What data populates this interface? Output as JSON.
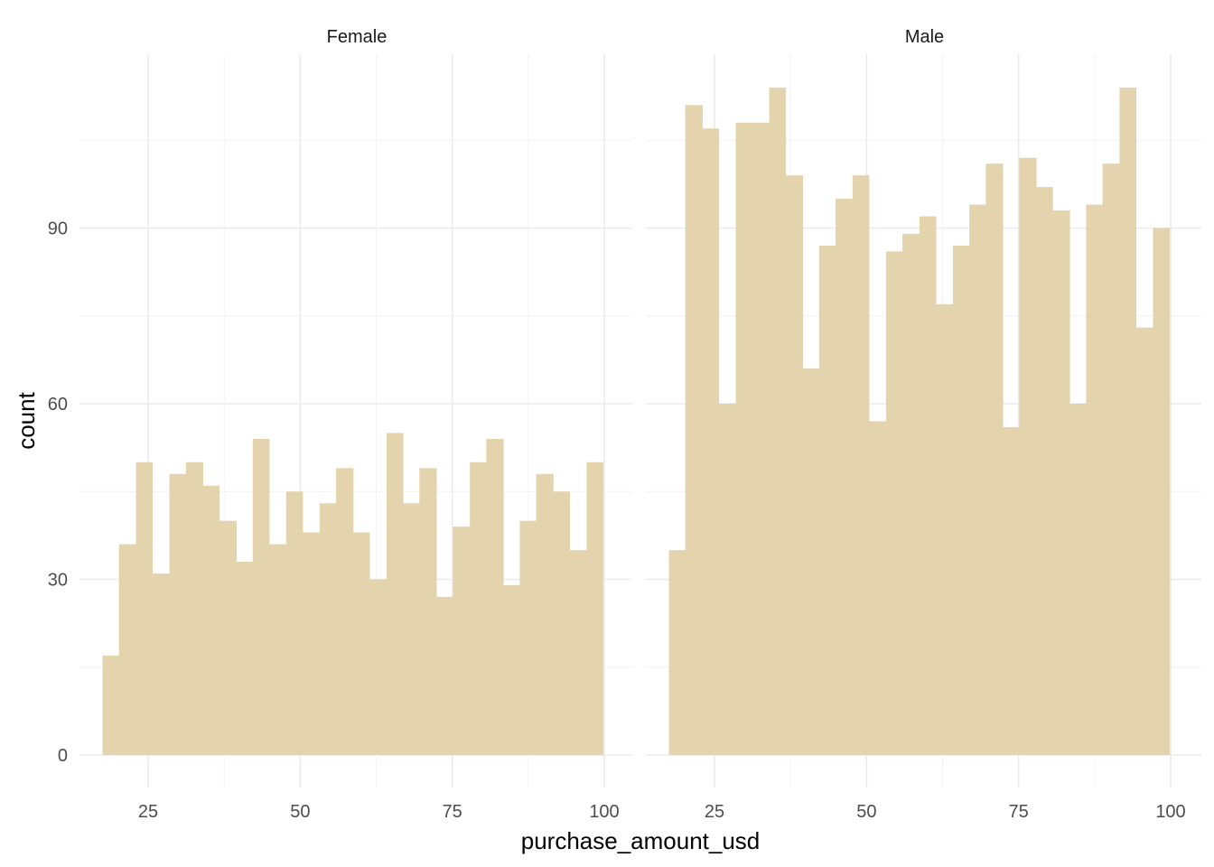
{
  "chart_data": {
    "type": "bar",
    "subtype": "histogram-facets",
    "xlabel": "purchase_amount_usd",
    "ylabel": "count",
    "x_ticks": [
      25,
      50,
      75,
      100
    ],
    "y_ticks": [
      0,
      30,
      60,
      90
    ],
    "xlim": [
      15.5,
      103
    ],
    "ylim": [
      0,
      120
    ],
    "bin_edges": [
      17.5,
      20.2,
      23.0,
      25.7,
      28.5,
      31.2,
      34.0,
      36.7,
      39.5,
      42.2,
      44.9,
      47.7,
      50.4,
      53.2,
      55.9,
      58.7,
      61.4,
      64.2,
      66.9,
      69.6,
      72.4,
      75.1,
      77.9,
      80.6,
      83.4,
      86.1,
      88.8,
      91.6,
      94.3,
      97.1,
      99.8
    ],
    "bar_color": "#e4d4ae",
    "grid": true,
    "facets": [
      {
        "name": "Female",
        "values": [
          17,
          36,
          50,
          31,
          48,
          50,
          46,
          40,
          33,
          54,
          36,
          45,
          38,
          43,
          49,
          38,
          30,
          55,
          43,
          49,
          27,
          39,
          50,
          54,
          29,
          40,
          48,
          45,
          35,
          50
        ]
      },
      {
        "name": "Male",
        "values": [
          35,
          111,
          107,
          60,
          108,
          108,
          114,
          99,
          66,
          87,
          95,
          99,
          57,
          86,
          89,
          92,
          77,
          87,
          94,
          101,
          56,
          102,
          97,
          93,
          60,
          94,
          101,
          114,
          73,
          90
        ]
      }
    ]
  }
}
